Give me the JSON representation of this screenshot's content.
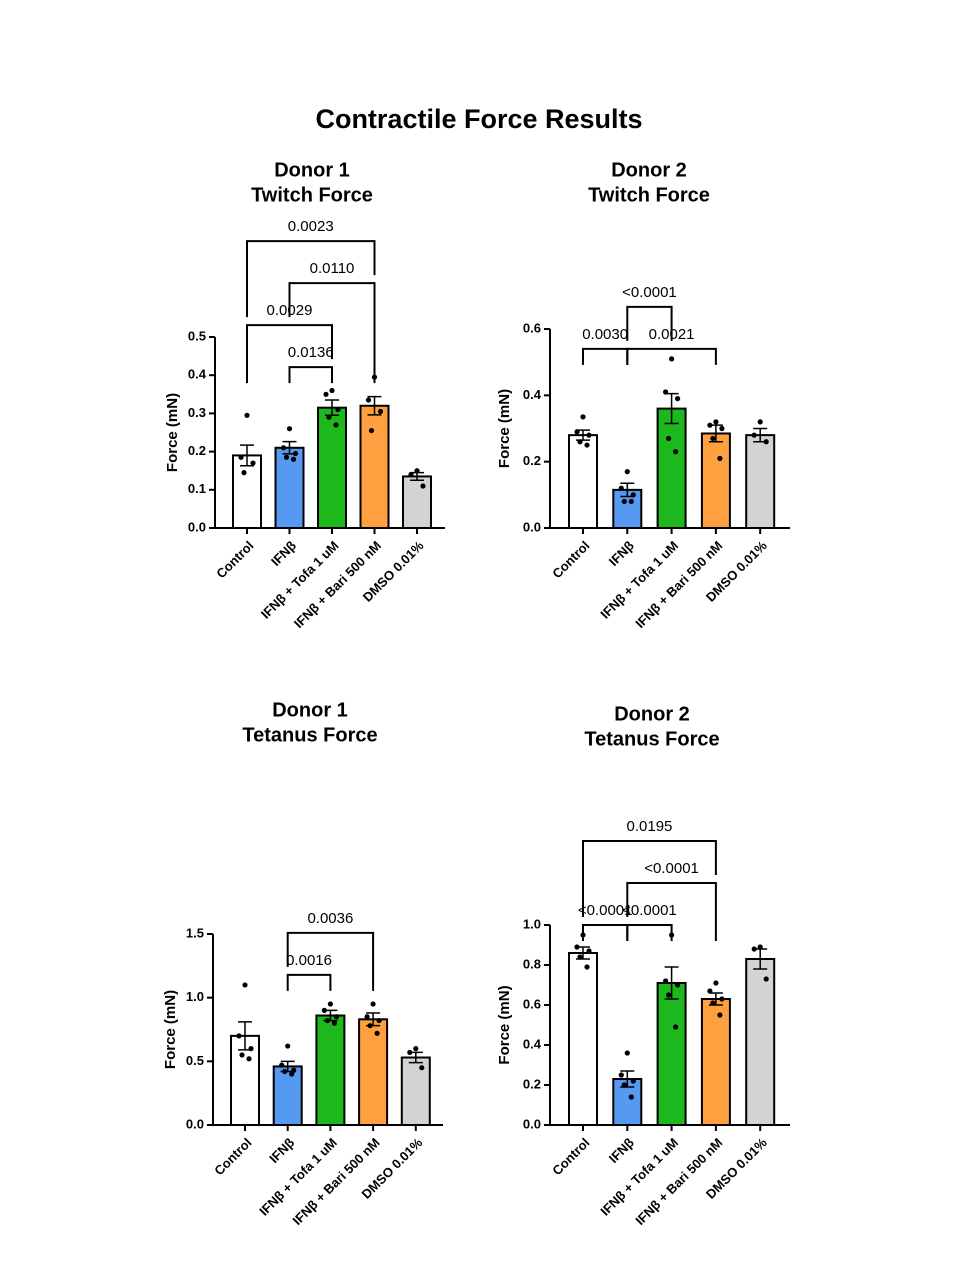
{
  "title": "Contractile Force Results",
  "chart_data": [
    {
      "type": "bar",
      "title": [
        "Donor 1",
        "Twitch Force"
      ],
      "ylabel": "Force (mN)",
      "categories": [
        "Control",
        "IFNβ",
        "IFNβ + Tofa 1 uM",
        "IFNβ + Bari 500 nM",
        "DMSO 0.01%"
      ],
      "colors": [
        "#ffffff",
        "#5599f0",
        "#1cb81c",
        "#ffa040",
        "#d3d3d3"
      ],
      "values": [
        0.19,
        0.21,
        0.315,
        0.32,
        0.135
      ],
      "errors": [
        0.027,
        0.016,
        0.02,
        0.024,
        0.01
      ],
      "points": [
        [
          0.295,
          0.185,
          0.17,
          0.145
        ],
        [
          0.26,
          0.21,
          0.195,
          0.185,
          0.18
        ],
        [
          0.36,
          0.35,
          0.31,
          0.29,
          0.27
        ],
        [
          0.395,
          0.335,
          0.305,
          0.255
        ],
        [
          0.15,
          0.14,
          0.11
        ]
      ],
      "ylim": [
        0,
        0.5
      ],
      "yticks": [
        {
          "value": 0,
          "label": "0.0"
        },
        0.1,
        0.2,
        0.3,
        0.4,
        0.5
      ],
      "comparisons": [
        {
          "from": 1,
          "to": 2,
          "label": "0.0136"
        },
        {
          "from": 0,
          "to": 2,
          "label": "0.0029"
        },
        {
          "from": 1,
          "to": 3,
          "label": "0.0110"
        },
        {
          "from": 0,
          "to": 3,
          "label": "0.0023"
        }
      ]
    },
    {
      "type": "bar",
      "title": [
        "Donor 2",
        "Twitch Force"
      ],
      "ylabel": "Force (mN)",
      "categories": [
        "Control",
        "IFNβ",
        "IFNβ + Tofa 1 uM",
        "IFNβ + Bari 500 nM",
        "DMSO 0.01%"
      ],
      "colors": [
        "#ffffff",
        "#5599f0",
        "#1cb81c",
        "#ffa040",
        "#d3d3d3"
      ],
      "values": [
        0.28,
        0.115,
        0.36,
        0.285,
        0.28
      ],
      "errors": [
        0.015,
        0.02,
        0.045,
        0.025,
        0.02
      ],
      "points": [
        [
          0.335,
          0.29,
          0.28,
          0.26,
          0.25
        ],
        [
          0.17,
          0.12,
          0.1,
          0.08,
          0.08
        ],
        [
          0.51,
          0.41,
          0.39,
          0.27,
          0.23
        ],
        [
          0.32,
          0.31,
          0.3,
          0.27,
          0.21
        ],
        [
          0.32,
          0.28,
          0.26
        ]
      ],
      "ylim": [
        0,
        0.6
      ],
      "yticks": [
        {
          "value": 0,
          "label": "0.0"
        },
        0.2,
        0.4,
        0.6
      ],
      "comparisons": [
        {
          "from": 0,
          "to": 1,
          "label": "0.0030"
        },
        {
          "from": 1,
          "to": 3,
          "label": "0.0021"
        },
        {
          "from": 1,
          "to": 2,
          "label": "<0.0001"
        }
      ]
    },
    {
      "type": "bar",
      "title": [
        "Donor 1",
        "Tetanus Force"
      ],
      "ylabel": "Force (mN)",
      "categories": [
        "Control",
        "IFNβ",
        "IFNβ + Tofa 1 uM",
        "IFNβ + Bari 500 nM",
        "DMSO 0.01%"
      ],
      "colors": [
        "#ffffff",
        "#5599f0",
        "#1cb81c",
        "#ffa040",
        "#d3d3d3"
      ],
      "values": [
        0.7,
        0.46,
        0.86,
        0.83,
        0.53
      ],
      "errors": [
        0.11,
        0.04,
        0.04,
        0.05,
        0.04
      ],
      "points": [
        [
          1.1,
          0.7,
          0.6,
          0.55,
          0.52
        ],
        [
          0.62,
          0.47,
          0.43,
          0.42,
          0.4
        ],
        [
          0.95,
          0.9,
          0.85,
          0.82,
          0.8
        ],
        [
          0.95,
          0.85,
          0.82,
          0.78,
          0.72
        ],
        [
          0.6,
          0.57,
          0.45
        ]
      ],
      "ylim": [
        0,
        1.5
      ],
      "yticks": [
        {
          "value": 0,
          "label": "0.0"
        },
        0.5,
        {
          "value": 1,
          "label": "1.0"
        },
        1.5
      ],
      "comparisons": [
        {
          "from": 1,
          "to": 2,
          "label": "0.0016"
        },
        {
          "from": 1,
          "to": 3,
          "label": "0.0036"
        }
      ]
    },
    {
      "type": "bar",
      "title": [
        "Donor 2",
        "Tetanus Force"
      ],
      "ylabel": "Force (mN)",
      "categories": [
        "Control",
        "IFNβ",
        "IFNβ + Tofa 1 uM",
        "IFNβ + Bari 500 nM",
        "DMSO 0.01%"
      ],
      "colors": [
        "#ffffff",
        "#5599f0",
        "#1cb81c",
        "#ffa040",
        "#d3d3d3"
      ],
      "values": [
        0.86,
        0.23,
        0.71,
        0.63,
        0.83
      ],
      "errors": [
        0.03,
        0.04,
        0.08,
        0.03,
        0.05
      ],
      "points": [
        [
          0.95,
          0.89,
          0.87,
          0.84,
          0.79
        ],
        [
          0.36,
          0.25,
          0.22,
          0.2,
          0.14
        ],
        [
          0.95,
          0.72,
          0.7,
          0.65,
          0.49
        ],
        [
          0.71,
          0.67,
          0.63,
          0.61,
          0.55
        ],
        [
          0.89,
          0.88,
          0.73
        ]
      ],
      "ylim": [
        0,
        1.0
      ],
      "yticks": [
        {
          "value": 0,
          "label": "0.0"
        },
        0.2,
        0.4,
        0.6,
        0.8,
        {
          "value": 1,
          "label": "1.0"
        }
      ],
      "comparisons": [
        {
          "from": 0,
          "to": 1,
          "label": "<0.0001"
        },
        {
          "from": 1,
          "to": 2,
          "label": "<0.0001"
        },
        {
          "from": 1,
          "to": 3,
          "label": "<0.0001"
        },
        {
          "from": 0,
          "to": 3,
          "label": "0.0195"
        }
      ]
    }
  ]
}
